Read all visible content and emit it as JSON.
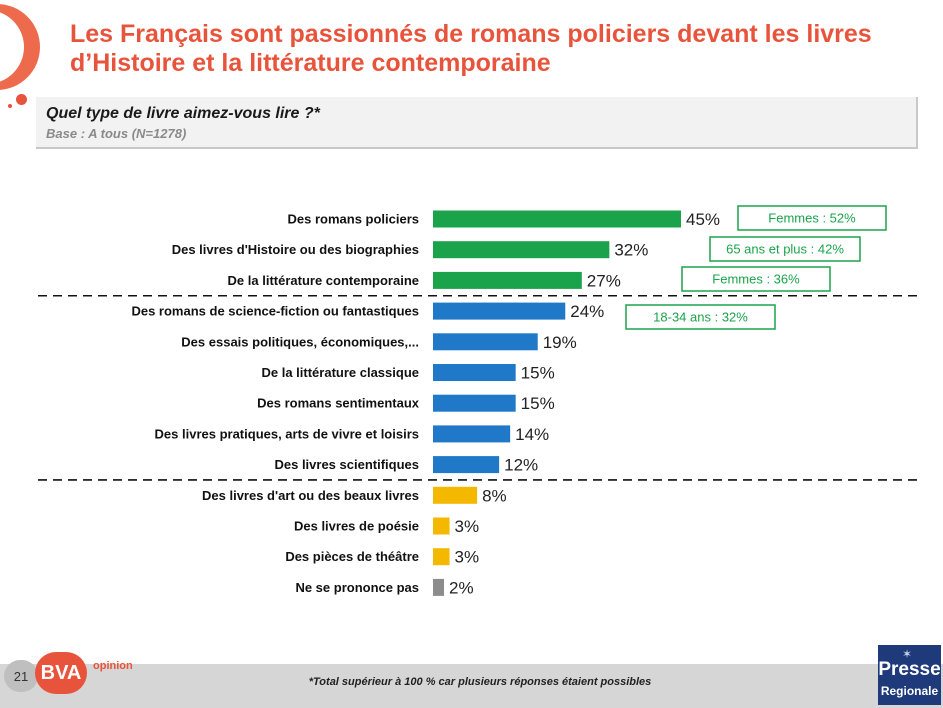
{
  "header": {
    "title": "Les Français sont passionnés de romans policiers devant les livres d’Histoire et la littérature contemporaine"
  },
  "question": {
    "text": "Quel type de livre aimez-vous lire ?*",
    "base": "Base : A tous (N=1278)"
  },
  "chart_data": {
    "type": "bar",
    "orientation": "horizontal",
    "categories": [
      "Des romans policiers",
      "Des livres d'Histoire ou des biographies",
      "De la littérature contemporaine",
      "Des romans de science-fiction ou fantastiques",
      "Des essais politiques, économiques,...",
      "De la littérature classique",
      "Des romans sentimentaux",
      "Des livres pratiques, arts de vivre et loisirs",
      "Des livres scientifiques",
      "Des livres d'art ou des beaux livres",
      "Des livres de poésie",
      "Des pièces de théâtre",
      "Ne se prononce pas"
    ],
    "values": [
      45,
      32,
      27,
      24,
      19,
      15,
      15,
      14,
      12,
      8,
      3,
      3,
      2
    ],
    "value_labels": [
      "45%",
      "32%",
      "27%",
      "24%",
      "19%",
      "15%",
      "15%",
      "14%",
      "12%",
      "8%",
      "3%",
      "3%",
      "2%"
    ],
    "groups": [
      "top",
      "top",
      "top",
      "mid",
      "mid",
      "mid",
      "mid",
      "mid",
      "mid",
      "low",
      "low",
      "low",
      "nsp"
    ],
    "colors": {
      "top": "#1aa34a",
      "mid": "#1f78c8",
      "low": "#f5b800",
      "nsp": "#8c8c8c"
    },
    "callout_color": "#1aa34a",
    "callouts": [
      {
        "row": 0,
        "text": "Femmes : 52%"
      },
      {
        "row": 1,
        "text": "65 ans et plus : 42%"
      },
      {
        "row": 2,
        "text": "Femmes : 36%"
      },
      {
        "row": 3,
        "text": "18-34 ans : 32%"
      }
    ],
    "separators_after_rows": [
      2,
      8
    ],
    "xlim": [
      0,
      45
    ]
  },
  "footer": {
    "page_number": "21",
    "logo": "BVA",
    "logo_sub": "opinion",
    "note": "*Total supérieur à 100 % car plusieurs réponses étaient possibles",
    "partner_line1": "Presse",
    "partner_line2": "Regionale"
  }
}
